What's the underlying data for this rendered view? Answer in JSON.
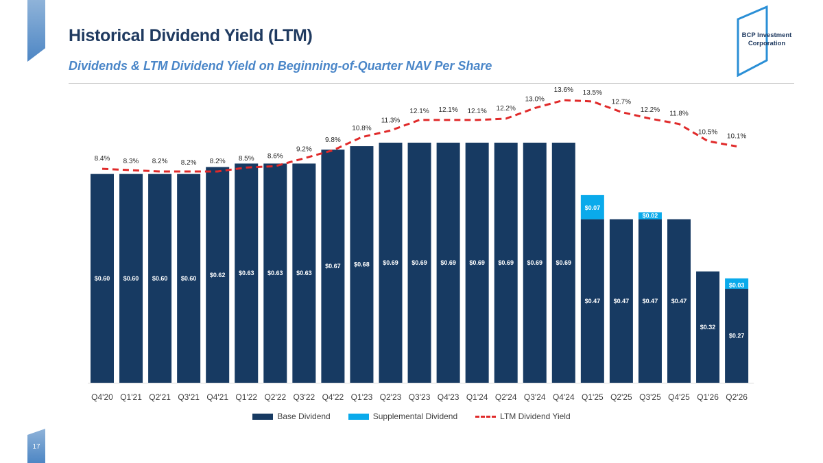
{
  "slide": {
    "title": "Historical Dividend Yield (LTM)",
    "subtitle": "Dividends & LTM Dividend Yield on Beginning-of-Quarter NAV Per Share",
    "page_number": "17"
  },
  "logo": {
    "line1": "BCP Investment",
    "line2": "Corporation"
  },
  "colors": {
    "base": "#173a62",
    "supplemental": "#0aaaeb",
    "yield_line": "#e02a2a",
    "title": "#1f3a60",
    "subtitle": "#4a86c8"
  },
  "legend": {
    "base_label": "Base Dividend",
    "supplemental_label": "Supplemental Dividend",
    "yield_label": "LTM Dividend Yield"
  },
  "chart_data": {
    "type": "bar",
    "stacked": true,
    "categories": [
      "Q4'20",
      "Q1'21",
      "Q2'21",
      "Q3'21",
      "Q4'21",
      "Q1'22",
      "Q2'22",
      "Q3'22",
      "Q4'22",
      "Q1'23",
      "Q2'23",
      "Q3'23",
      "Q4'23",
      "Q1'24",
      "Q2'24",
      "Q3'24",
      "Q4'24",
      "Q1'25",
      "Q2'25",
      "Q3'25",
      "Q4'25",
      "Q1'26",
      "Q2'26"
    ],
    "series": [
      {
        "name": "Base Dividend",
        "values": [
          0.6,
          0.6,
          0.6,
          0.6,
          0.62,
          0.63,
          0.63,
          0.63,
          0.67,
          0.68,
          0.69,
          0.69,
          0.69,
          0.69,
          0.69,
          0.69,
          0.69,
          0.47,
          0.47,
          0.47,
          0.47,
          0.32,
          0.27
        ],
        "labels": [
          "$0.60",
          "$0.60",
          "$0.60",
          "$0.60",
          "$0.62",
          "$0.63",
          "$0.63",
          "$0.63",
          "$0.67",
          "$0.68",
          "$0.69",
          "$0.69",
          "$0.69",
          "$0.69",
          "$0.69",
          "$0.69",
          "$0.69",
          "$0.47",
          "$0.47",
          "$0.47",
          "$0.47",
          "$0.32",
          "$0.27"
        ]
      },
      {
        "name": "Supplemental Dividend",
        "values": [
          0,
          0,
          0,
          0,
          0,
          0,
          0,
          0,
          0,
          0,
          0,
          0,
          0,
          0,
          0,
          0,
          0,
          0.07,
          0,
          0.02,
          0,
          0,
          0.03
        ],
        "labels": [
          "",
          "",
          "",
          "",
          "",
          "",
          "",
          "",
          "",
          "",
          "",
          "",
          "",
          "",
          "",
          "",
          "",
          "$0.07",
          "",
          "$0.02",
          "",
          "",
          "$0.03"
        ]
      },
      {
        "name": "LTM Dividend Yield",
        "type": "line",
        "style": "dashed",
        "values": [
          8.4,
          8.3,
          8.2,
          8.2,
          8.2,
          8.5,
          8.6,
          9.2,
          9.8,
          10.8,
          11.3,
          12.1,
          12.1,
          12.1,
          12.2,
          13.0,
          13.6,
          13.5,
          12.7,
          12.2,
          11.8,
          10.5,
          10.1
        ],
        "labels": [
          "8.4%",
          "8.3%",
          "8.2%",
          "8.2%",
          "8.2%",
          "8.5%",
          "8.6%",
          "9.2%",
          "9.8%",
          "10.8%",
          "11.3%",
          "12.1%",
          "12.1%",
          "12.1%",
          "12.2%",
          "13.0%",
          "13.6%",
          "13.5%",
          "12.7%",
          "12.2%",
          "11.8%",
          "10.5%",
          "10.1%"
        ]
      }
    ],
    "bar_axis_max": 0.69,
    "yield_axis_range": [
      0,
      14
    ],
    "grid": false,
    "legend_position": "bottom"
  }
}
